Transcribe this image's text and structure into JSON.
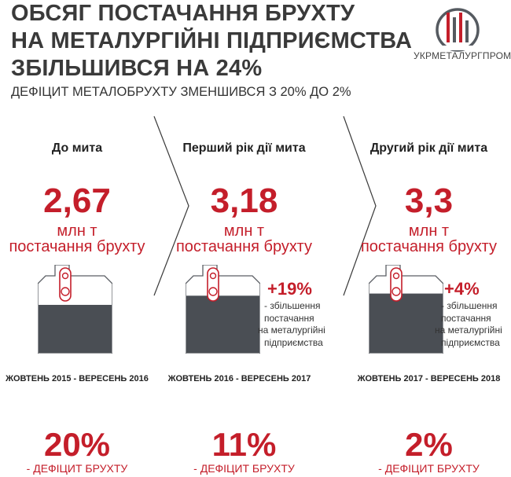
{
  "title_lines": [
    "ОБСЯГ ПОСТАЧАННЯ БРУХТУ",
    "НА МЕТАЛУРГІЙНІ ПІДПРИЄМСТВА",
    "ЗБІЛЬШИВСЯ НА 24%"
  ],
  "subtitle": "ДЕФІЦИТ МЕТАЛОБРУХТУ ЗМЕНШИВСЯ З 20% ДО 2%",
  "logo_text": "УКРМЕТАЛУРГПРОМ",
  "colors": {
    "accent": "#c41e2a",
    "scrap": "#4a4e54",
    "title": "#3a3a3a",
    "vessel_outline": "#5a5e63"
  },
  "chart_data": {
    "type": "infographic",
    "unit": "млн т",
    "value_label": "постачання брухту",
    "deficit_label": "- ДЕФІЦИТ БРУХТУ",
    "periods": [
      {
        "heading": "До мита",
        "value": 2.67,
        "value_text": "2,67",
        "dates": "ЖОВТЕНЬ 2015 - ВЕРЕСЕНЬ 2016",
        "change_text": "",
        "deficit_pct": 20,
        "deficit_text": "20%"
      },
      {
        "heading": "Перший рік дії мита",
        "value": 3.18,
        "value_text": "3,18",
        "dates": "ЖОВТЕНЬ 2016 - ВЕРЕСЕНЬ 2017",
        "change_text": "+19%",
        "deficit_pct": 11,
        "deficit_text": "11%"
      },
      {
        "heading": "Другий рік дії мита",
        "value": 3.3,
        "value_text": "3,3",
        "dates": "ЖОВТЕНЬ 2017 - ВЕРЕСЕНЬ 2018",
        "change_text": "+4%",
        "deficit_pct": 2,
        "deficit_text": "2%"
      }
    ],
    "change_desc_lines": [
      "- збільшення",
      "постачання",
      "на металургійні",
      "підприємства"
    ]
  }
}
